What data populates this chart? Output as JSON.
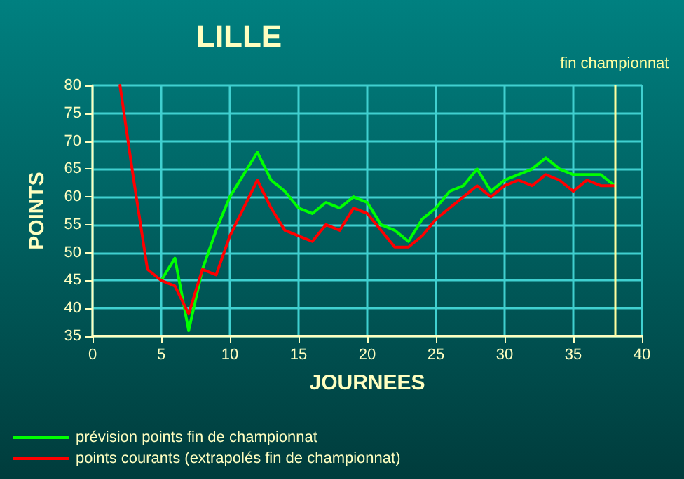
{
  "chart_data": {
    "type": "line",
    "title": "LILLE",
    "xlabel": "JOURNEES",
    "ylabel": "POINTS",
    "x": [
      2,
      3,
      4,
      5,
      6,
      7,
      8,
      9,
      10,
      11,
      12,
      13,
      14,
      15,
      16,
      17,
      18,
      19,
      20,
      21,
      22,
      23,
      24,
      25,
      26,
      27,
      28,
      29,
      30,
      31,
      32,
      33,
      34,
      35,
      36,
      37,
      38
    ],
    "series": [
      {
        "name": "prévision points fin de championnat",
        "color": "#00ff00",
        "values": [
          null,
          null,
          null,
          45,
          49,
          36,
          47,
          54,
          60,
          64,
          68,
          63,
          61,
          58,
          57,
          59,
          58,
          60,
          59,
          55,
          54,
          52,
          56,
          58,
          61,
          62,
          65,
          61,
          63,
          64,
          65,
          67,
          65,
          64,
          64,
          64,
          62
        ]
      },
      {
        "name": "points courants (extrapolés fin de championnat)",
        "color": "#ff0000",
        "values": [
          80,
          63,
          47,
          45,
          44,
          39,
          47,
          46,
          53,
          58,
          63,
          58,
          54,
          53,
          52,
          55,
          54,
          58,
          57,
          54,
          51,
          51,
          53,
          56,
          58,
          60,
          62,
          60,
          62,
          63,
          62,
          64,
          63,
          61,
          63,
          62,
          62
        ]
      }
    ],
    "xlim": [
      0,
      40
    ],
    "xticks": [
      0,
      5,
      10,
      15,
      20,
      25,
      30,
      35,
      40
    ],
    "ylim": [
      35,
      80
    ],
    "yticks": [
      35,
      40,
      45,
      50,
      55,
      60,
      65,
      70,
      75,
      80
    ],
    "ref_lines": [
      {
        "axis": "x",
        "value": 38,
        "label": "fin championnat",
        "color": "#ffffa0"
      }
    ],
    "grid": true,
    "legend": "bottom left",
    "marker": "none",
    "line_style": "solid"
  }
}
